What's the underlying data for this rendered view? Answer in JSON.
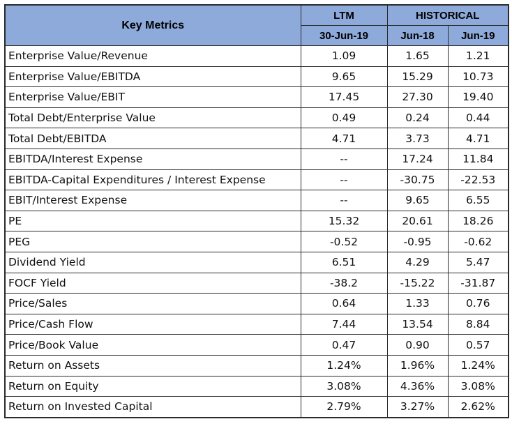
{
  "table": {
    "header": {
      "key_metrics": "Key Metrics",
      "ltm": "LTM",
      "historical": "HISTORICAL",
      "ltm_date": "30-Jun-19",
      "hist_dates": [
        "Jun-18",
        "Jun-19"
      ]
    },
    "rows": [
      {
        "metric": "Enterprise Value/Revenue",
        "values": [
          "1.09",
          "1.65",
          "1.21"
        ]
      },
      {
        "metric": "Enterprise Value/EBITDA",
        "values": [
          "9.65",
          "15.29",
          "10.73"
        ]
      },
      {
        "metric": "Enterprise Value/EBIT",
        "values": [
          "17.45",
          "27.30",
          "19.40"
        ]
      },
      {
        "metric": "Total Debt/Enterprise Value",
        "values": [
          "0.49",
          "0.24",
          "0.44"
        ]
      },
      {
        "metric": "Total Debt/EBITDA",
        "values": [
          "4.71",
          "3.73",
          "4.71"
        ]
      },
      {
        "metric": "EBITDA/Interest Expense",
        "values": [
          "--",
          "17.24",
          "11.84"
        ]
      },
      {
        "metric": "EBITDA-Capital Expenditures / Interest Expense",
        "values": [
          "--",
          "-30.75",
          "-22.53"
        ]
      },
      {
        "metric": "EBIT/Interest Expense",
        "values": [
          "--",
          "9.65",
          "6.55"
        ]
      },
      {
        "metric": "PE",
        "values": [
          "15.32",
          "20.61",
          "18.26"
        ]
      },
      {
        "metric": "PEG",
        "values": [
          "-0.52",
          "-0.95",
          "-0.62"
        ]
      },
      {
        "metric": "Dividend Yield",
        "values": [
          "6.51",
          "4.29",
          "5.47"
        ]
      },
      {
        "metric": "FOCF Yield",
        "values": [
          "-38.2",
          "-15.22",
          "-31.87"
        ]
      },
      {
        "metric": "Price/Sales",
        "values": [
          "0.64",
          "1.33",
          "0.76"
        ]
      },
      {
        "metric": "Price/Cash Flow",
        "values": [
          "7.44",
          "13.54",
          "8.84"
        ]
      },
      {
        "metric": "Price/Book Value",
        "values": [
          "0.47",
          "0.90",
          "0.57"
        ]
      },
      {
        "metric": "Return on Assets",
        "values": [
          "1.24%",
          "1.96%",
          "1.24%"
        ]
      },
      {
        "metric": "Return on Equity",
        "values": [
          "3.08%",
          "4.36%",
          "3.08%"
        ]
      },
      {
        "metric": "Return on Invested Capital",
        "values": [
          "2.79%",
          "3.27%",
          "2.62%"
        ]
      }
    ],
    "colors": {
      "header_background": "#8eaadb",
      "border": "#2a2a2a"
    }
  }
}
